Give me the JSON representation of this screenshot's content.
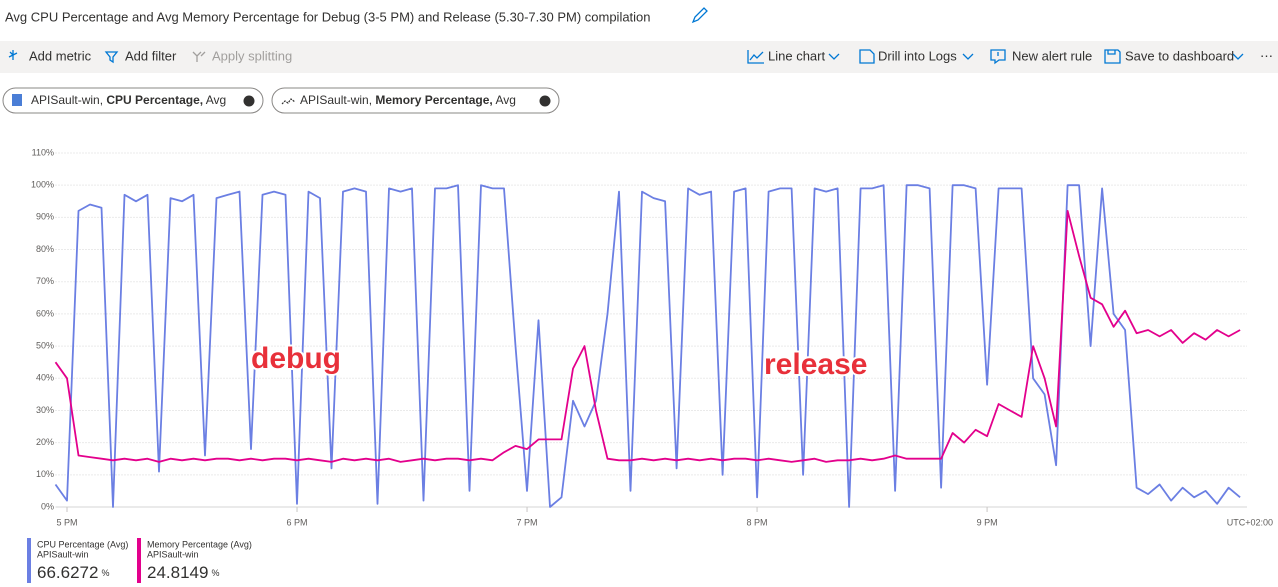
{
  "header": {
    "title": "Avg CPU Percentage and Avg Memory Percentage for Debug (3-5 PM) and Release (5.30-7.30 PM) compilation"
  },
  "toolbar": {
    "left": [
      "Add metric",
      "Add filter",
      "Apply splitting"
    ],
    "right": [
      "Line chart",
      "Drill into Logs",
      "New alert rule",
      "Save to dashboard"
    ]
  },
  "metric_pills": [
    {
      "resource": "APISault-win,",
      "metric": "CPU Percentage,",
      "aggregation": "Avg"
    },
    {
      "resource": "APISault-win,",
      "metric": "Memory Percentage,",
      "aggregation": "Avg"
    }
  ],
  "chart_data": {
    "type": "line",
    "annotations": [
      "debug",
      "release"
    ],
    "timezone": "UTC+02:00",
    "x": [
      16.95,
      17,
      17.05,
      17.1,
      17.15,
      17.2,
      17.25,
      17.3,
      17.35,
      17.4,
      17.45,
      17.5,
      17.55,
      17.6,
      17.65,
      17.7,
      17.75,
      17.8,
      17.85,
      17.9,
      17.95,
      18,
      18.05,
      18.1,
      18.15,
      18.2,
      18.25,
      18.3,
      18.35,
      18.4,
      18.45,
      18.5,
      18.55,
      18.6,
      18.65,
      18.7,
      18.75,
      18.8,
      18.85,
      18.9,
      18.95,
      19,
      19.05,
      19.1,
      19.15,
      19.2,
      19.25,
      19.3,
      19.35,
      19.4,
      19.45,
      19.5,
      19.55,
      19.6,
      19.65,
      19.7,
      19.75,
      19.8,
      19.85,
      19.9,
      19.95,
      20,
      20.05,
      20.1,
      20.15,
      20.2,
      20.25,
      20.3,
      20.35,
      20.4,
      20.45,
      20.5,
      20.55,
      20.6,
      20.65,
      20.7,
      20.75,
      20.8,
      20.85,
      20.9,
      20.95,
      21,
      21.05,
      21.1,
      21.15,
      21.2,
      21.25,
      21.3,
      21.35,
      21.4,
      21.45,
      21.5,
      21.55,
      21.6,
      21.65,
      21.7,
      21.75,
      21.8,
      21.85,
      21.9,
      21.95,
      22,
      22.05,
      22.1
    ],
    "xlim": [
      16.95,
      22.13
    ],
    "xticks": [
      {
        "value": 17,
        "label": "5 PM"
      },
      {
        "value": 18,
        "label": "6 PM"
      },
      {
        "value": 19,
        "label": "7 PM"
      },
      {
        "value": 20,
        "label": "8 PM"
      },
      {
        "value": 21,
        "label": "9 PM"
      }
    ],
    "ylim": [
      0,
      110
    ],
    "yticks": [
      {
        "value": 0,
        "label": "0%"
      },
      {
        "value": 10,
        "label": "10%"
      },
      {
        "value": 20,
        "label": "20%"
      },
      {
        "value": 30,
        "label": "30%"
      },
      {
        "value": 40,
        "label": "40%"
      },
      {
        "value": 50,
        "label": "50%"
      },
      {
        "value": 60,
        "label": "60%"
      },
      {
        "value": 70,
        "label": "70%"
      },
      {
        "value": 80,
        "label": "80%"
      },
      {
        "value": 90,
        "label": "90%"
      },
      {
        "value": 100,
        "label": "100%"
      },
      {
        "value": 110,
        "label": "110%"
      }
    ],
    "grid": true,
    "series": [
      {
        "name": "CPU Percentage (Avg)",
        "resource": "APISault-win",
        "summary": 66.6272,
        "unit": "%",
        "color": "#6b7fe3",
        "values": [
          7,
          2,
          92,
          94,
          93,
          0,
          97,
          95,
          97,
          11,
          96,
          95,
          97,
          16,
          96,
          97,
          98,
          18,
          97,
          98,
          97,
          1,
          98,
          96,
          12,
          98,
          99,
          98,
          1,
          99,
          98,
          99,
          2,
          99,
          99,
          100,
          5,
          100,
          99,
          99,
          50,
          5,
          58,
          0,
          3,
          33,
          25,
          33,
          60,
          98,
          5,
          98,
          96,
          95,
          12,
          99,
          97,
          98,
          10,
          98,
          99,
          3,
          98,
          99,
          99,
          10,
          99,
          98,
          99,
          0,
          99,
          99,
          100,
          5,
          100,
          100,
          99,
          6,
          100,
          100,
          99,
          38,
          99,
          99,
          99,
          40,
          35,
          13,
          100,
          100,
          50,
          99,
          60,
          55,
          6,
          4,
          7,
          2,
          6,
          3,
          5,
          1,
          6,
          3
        ]
      },
      {
        "name": "Memory Percentage (Avg)",
        "resource": "APISault-win",
        "summary": 24.8149,
        "unit": "%",
        "color": "#e3008c",
        "values": [
          45,
          40,
          16,
          15.5,
          15,
          14.5,
          15,
          14.5,
          15,
          14,
          15,
          14.5,
          15,
          14.5,
          15,
          15,
          14.5,
          15,
          14.5,
          15,
          15,
          14.5,
          15,
          14.5,
          14,
          15,
          14.5,
          15,
          14.5,
          15,
          14,
          14.5,
          15,
          14.5,
          15,
          15,
          14.5,
          15,
          14.5,
          17,
          19,
          18,
          21,
          21,
          21,
          43,
          50,
          30,
          15,
          14.5,
          14.5,
          15,
          14.5,
          15,
          14.5,
          15,
          14.5,
          15,
          14.5,
          15,
          15,
          14.5,
          15,
          14.5,
          14,
          14.5,
          15,
          14,
          14.5,
          14.5,
          15,
          14.5,
          15,
          16,
          15,
          15,
          15,
          15,
          23,
          20,
          24,
          22,
          32,
          30,
          28,
          50,
          40,
          25,
          92,
          78,
          65,
          63,
          56,
          61,
          54,
          55,
          53,
          55,
          51,
          54,
          52,
          55,
          53,
          55
        ]
      }
    ]
  }
}
